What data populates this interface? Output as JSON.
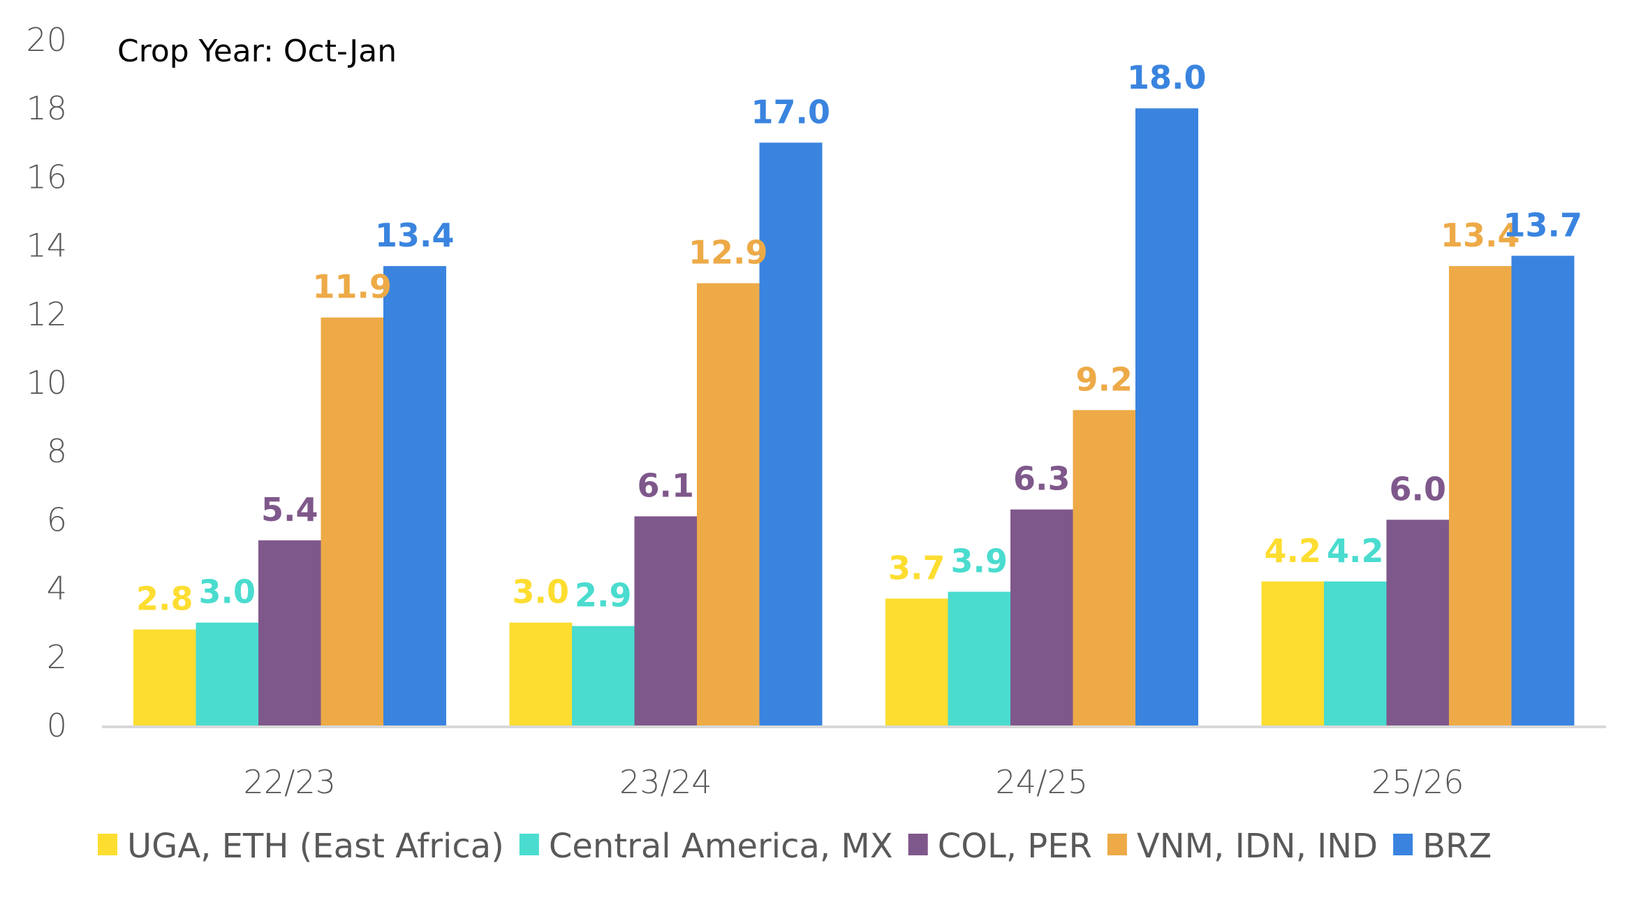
{
  "chart_data": {
    "type": "bar",
    "title": "",
    "subtitle": "Crop Year: Oct-Jan",
    "xlabel": "",
    "ylabel": "",
    "categories": [
      "22/23",
      "23/24",
      "24/25",
      "25/26"
    ],
    "ylim": [
      0,
      20
    ],
    "yticks": [
      0,
      2,
      4,
      6,
      8,
      10,
      12,
      14,
      16,
      18,
      20
    ],
    "grid": false,
    "legend_position": "bottom",
    "data_labels": true,
    "series": [
      {
        "name": "UGA, ETH (East Africa)",
        "color": "#FDDD30",
        "values": [
          2.8,
          3.0,
          3.7,
          4.2
        ],
        "labels": [
          "2.8",
          "3.0",
          "3.7",
          "4.2"
        ]
      },
      {
        "name": "Central America, MX",
        "color": "#4ADCCF",
        "values": [
          3.0,
          2.9,
          3.9,
          4.2
        ],
        "labels": [
          "3.0",
          "2.9",
          "3.9",
          "4.2"
        ]
      },
      {
        "name": "COL, PER",
        "color": "#7F588B",
        "values": [
          5.4,
          6.1,
          6.3,
          6.0
        ],
        "labels": [
          "5.4",
          "6.1",
          "6.3",
          "6.0"
        ]
      },
      {
        "name": "VNM, IDN, IND",
        "color": "#EDAA47",
        "values": [
          11.9,
          12.9,
          9.2,
          13.4
        ],
        "labels": [
          "11.9",
          "12.9",
          "9.2",
          "13.4"
        ]
      },
      {
        "name": "BRZ",
        "color": "#3A84DF",
        "values": [
          13.4,
          17.0,
          18.0,
          13.7
        ],
        "labels": [
          "13.4",
          "17.0",
          "18.0",
          "13.7"
        ]
      }
    ]
  }
}
